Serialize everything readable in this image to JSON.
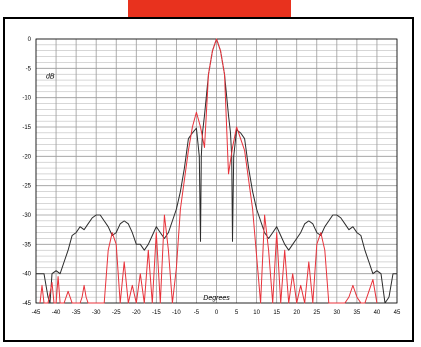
{
  "colors": {
    "top_bar": "#e8321e",
    "series_black": "#2b2b2b",
    "series_red": "#e8323a",
    "grid": "#9a9a9a"
  },
  "chart_data": {
    "type": "line",
    "ylabel": "dB",
    "xlabel": "Degrees",
    "xlim": [
      -45,
      45
    ],
    "ylim": [
      -45,
      0
    ],
    "x_ticks": [
      "-45",
      "-40",
      "-35",
      "-30",
      "-25",
      "-20",
      "-15",
      "-10",
      "-5",
      "0",
      "5",
      "10",
      "15",
      "20",
      "25",
      "30",
      "35",
      "40",
      "45"
    ],
    "y_ticks": [
      "0",
      "-5",
      "-10",
      "-15",
      "-20",
      "-25",
      "-30",
      "-35",
      "-40",
      "-45"
    ],
    "grid": true,
    "series": [
      {
        "color": "#2b2b2b",
        "x": [
          -45,
          -43,
          -42,
          -41.5,
          -41,
          -40,
          -39,
          -38,
          -37,
          -36,
          -35,
          -34,
          -33,
          -32,
          -31,
          -30,
          -29,
          -28,
          -27,
          -26,
          -25,
          -24,
          -23,
          -22,
          -21,
          -20,
          -19,
          -18,
          -17,
          -16,
          -15,
          -14,
          -13,
          -12,
          -11,
          -10,
          -9,
          -8,
          -7,
          -6,
          -5,
          -4.3,
          -4,
          -3.8,
          -3.5,
          -3,
          -2,
          -1,
          0,
          1,
          2,
          3,
          3.5,
          3.8,
          4,
          4.3,
          5,
          6,
          7,
          8,
          9,
          10,
          11,
          12,
          13,
          14,
          15,
          16,
          17,
          18,
          19,
          20,
          21,
          22,
          23,
          24,
          25,
          26,
          27,
          28,
          29,
          30,
          31,
          32,
          33,
          34,
          35,
          36,
          37,
          38,
          39,
          40,
          41,
          42,
          43,
          44,
          45
        ],
        "y": [
          -40,
          -40,
          -44,
          -45,
          -40,
          -39.5,
          -40,
          -38,
          -36,
          -33.5,
          -33,
          -32,
          -32.5,
          -31.5,
          -30.5,
          -30,
          -30,
          -31,
          -32,
          -33.5,
          -33,
          -31.5,
          -31,
          -31.5,
          -33,
          -35,
          -35,
          -36,
          -35,
          -33.5,
          -32,
          -33,
          -34,
          -33,
          -31,
          -29,
          -26,
          -22,
          -17,
          -16,
          -15.2,
          -20,
          -34.5,
          -20,
          -16,
          -13,
          -6,
          -2,
          0,
          -2,
          -6,
          -13,
          -16,
          -20,
          -34.5,
          -20,
          -15.5,
          -16,
          -17,
          -22,
          -26,
          -29,
          -31,
          -33,
          -34,
          -33,
          -32,
          -33.5,
          -35,
          -36,
          -35,
          -34,
          -33,
          -31.5,
          -31,
          -31.5,
          -33,
          -33.5,
          -32,
          -31,
          -30,
          -30,
          -30.5,
          -31.5,
          -32.5,
          -32,
          -33,
          -33.5,
          -36,
          -38,
          -40,
          -39.5,
          -40,
          -45,
          -44,
          -40,
          -40
        ]
      },
      {
        "color": "#e8323a",
        "x": [
          -44,
          -43.5,
          -43,
          -42,
          -41,
          -40.5,
          -40,
          -39.5,
          -39,
          -38,
          -37,
          -36,
          -35,
          -34,
          -33.5,
          -33,
          -32.5,
          -32,
          -31,
          -30,
          -29,
          -28,
          -27,
          -26,
          -25,
          -24,
          -23,
          -22,
          -21,
          -20,
          -19,
          -18,
          -17,
          -16,
          -15,
          -14,
          -13,
          -12,
          -11,
          -10,
          -9,
          -8,
          -7,
          -6,
          -5,
          -4,
          -3,
          -2,
          -1,
          0,
          1,
          2,
          3,
          4,
          5,
          6,
          7,
          8,
          9,
          10,
          11,
          12,
          13,
          14,
          15,
          16,
          17,
          18,
          19,
          20,
          21,
          22,
          23,
          24,
          25,
          26,
          27,
          28,
          29,
          30,
          31,
          32,
          33,
          34,
          35,
          36,
          37,
          38,
          39,
          40
        ],
        "y": [
          -45,
          -42,
          -45,
          -45,
          -41.5,
          -45,
          -45,
          -40.5,
          -45,
          -45,
          -43,
          -45,
          -45,
          -45,
          -44,
          -42,
          -44,
          -45,
          -45,
          -45,
          -45,
          -45,
          -36,
          -33,
          -35,
          -45,
          -38,
          -45,
          -42,
          -45,
          -40,
          -45,
          -36,
          -45,
          -33,
          -45,
          -30,
          -36,
          -45,
          -39,
          -29,
          -24,
          -19,
          -15,
          -12.5,
          -15,
          -18.5,
          -6,
          -2,
          0,
          -2,
          -6,
          -23,
          -18.5,
          -15,
          -17,
          -19,
          -24,
          -29,
          -37,
          -45,
          -30,
          -36,
          -45,
          -33,
          -45,
          -36,
          -45,
          -40,
          -45,
          -42,
          -45,
          -38,
          -45,
          -35,
          -33,
          -36,
          -45,
          -45,
          -45,
          -45,
          -45,
          -44,
          -42,
          -44,
          -45,
          -45,
          -43,
          -41,
          -45
        ]
      }
    ]
  }
}
